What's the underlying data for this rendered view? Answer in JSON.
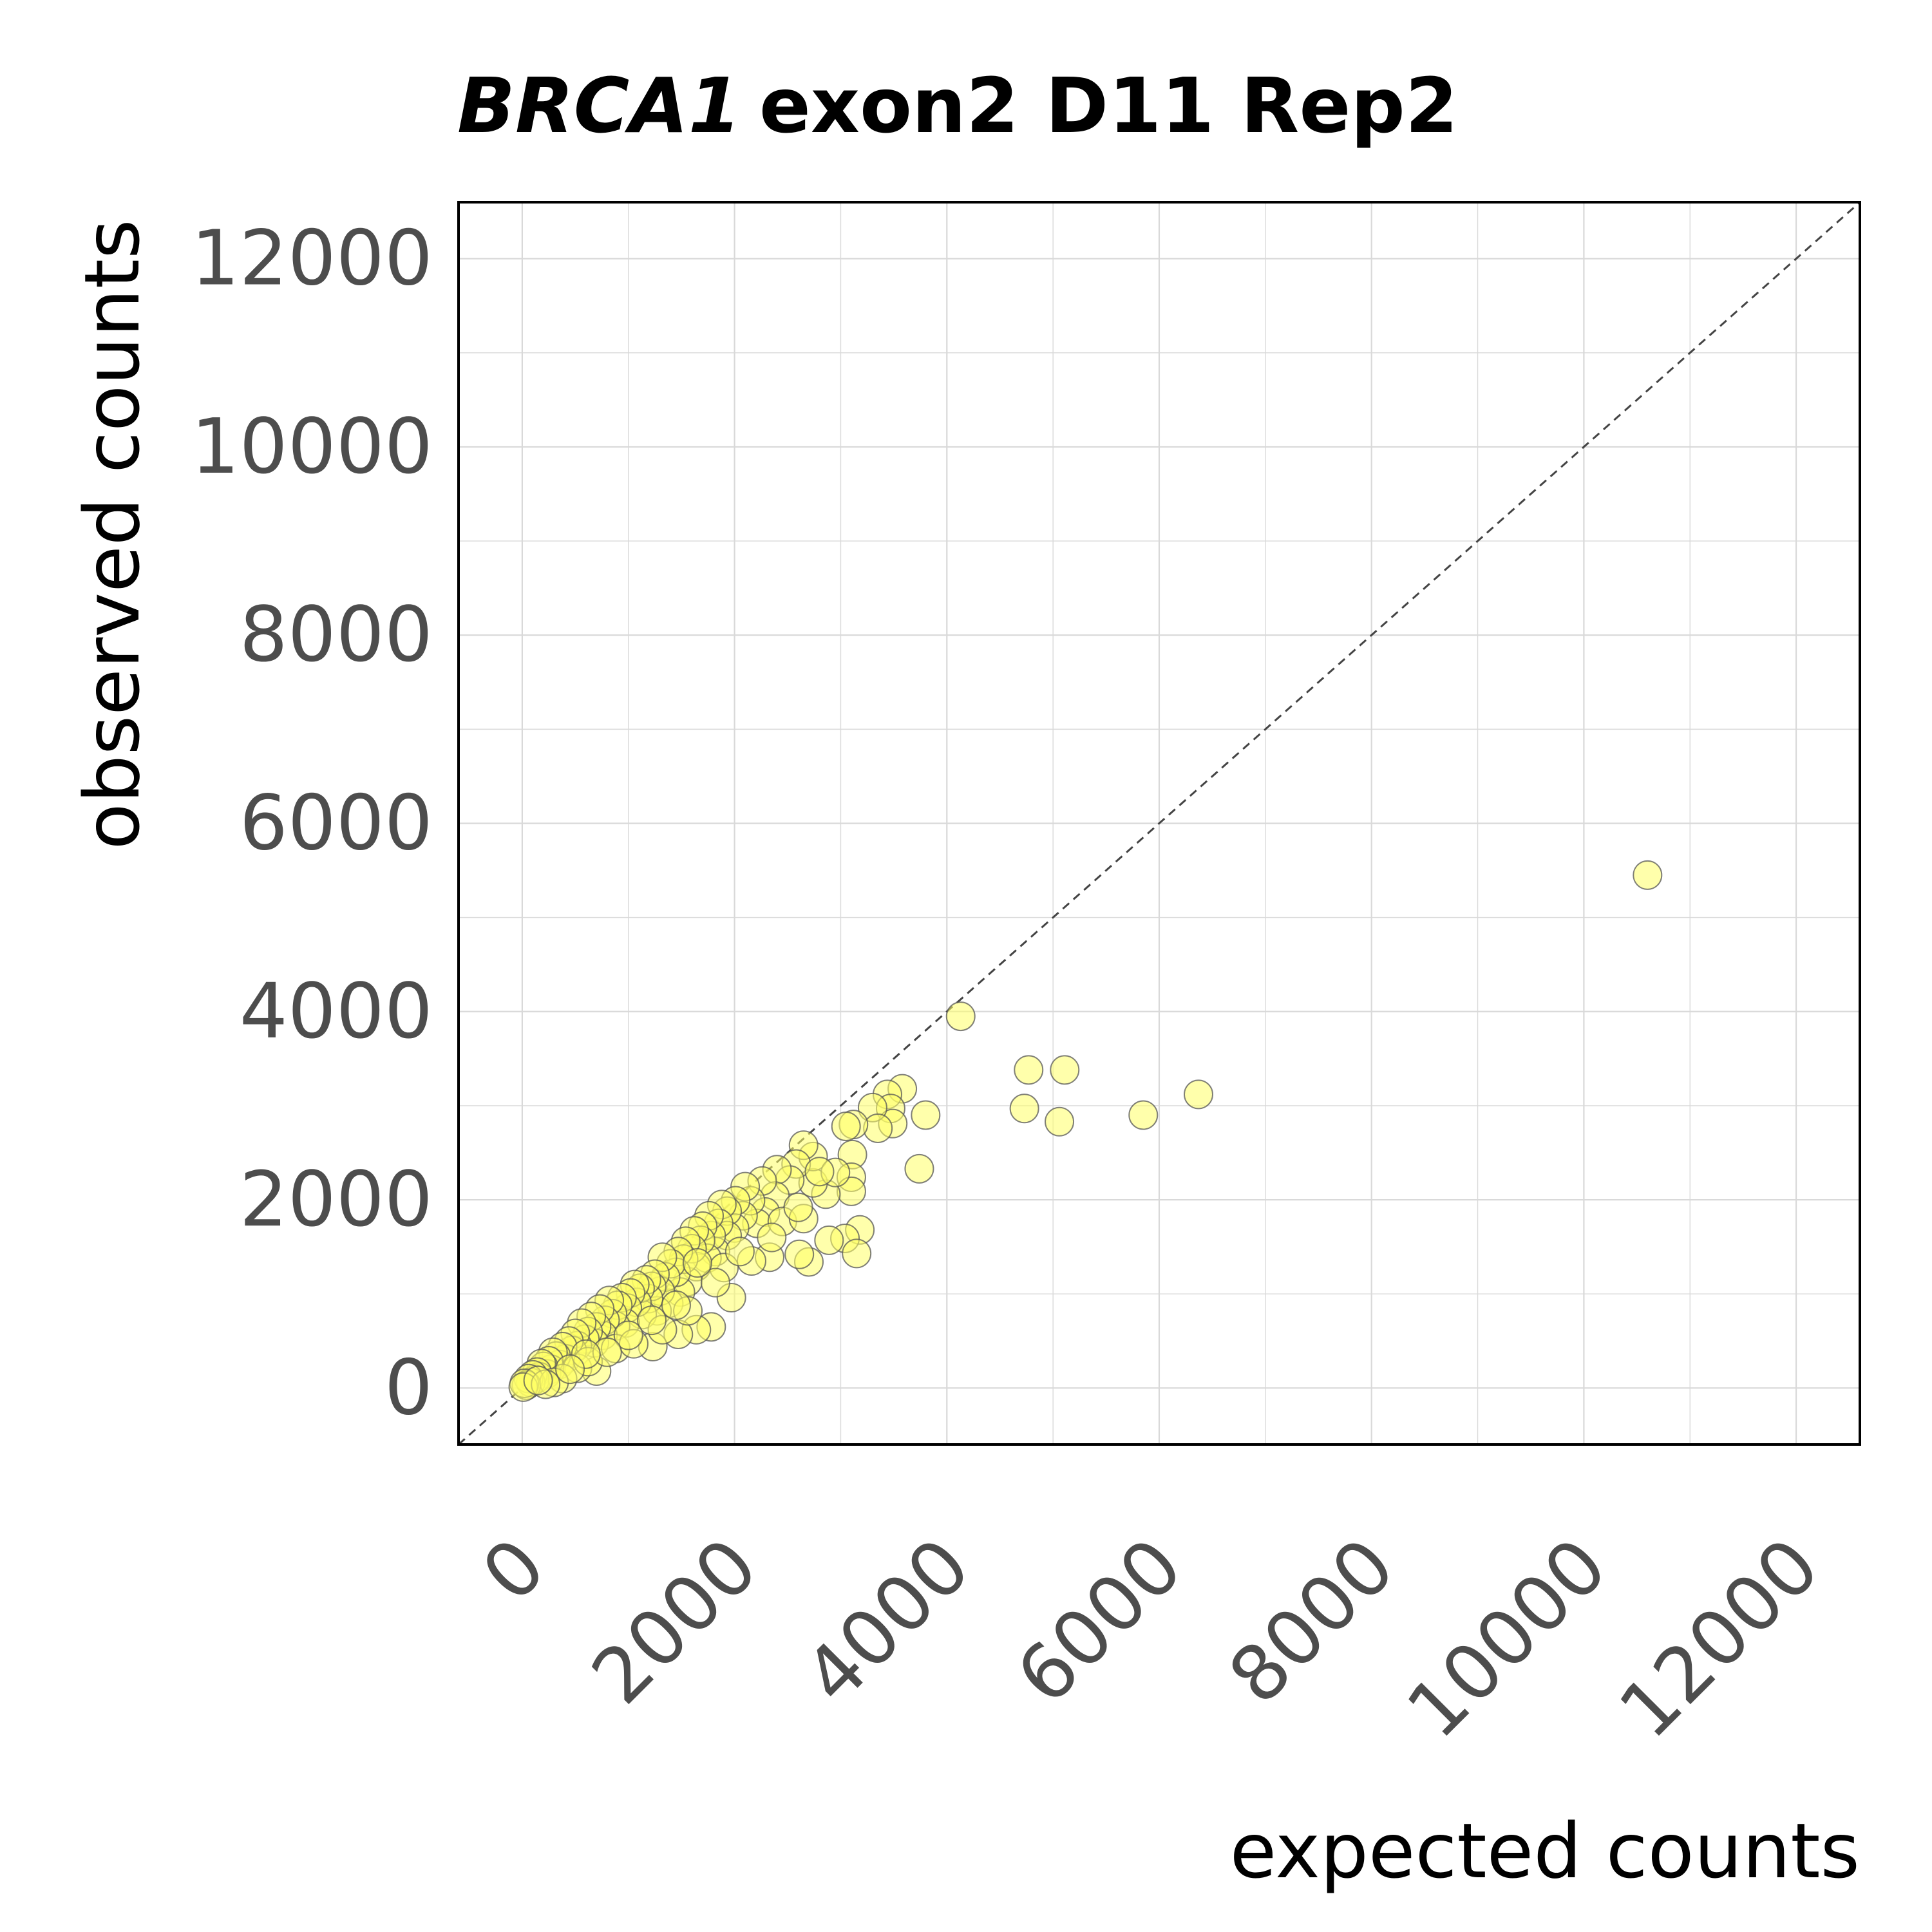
{
  "chart_data": {
    "type": "scatter",
    "title_gene": "BRCA1",
    "title_rest": "exon2 D11 Rep2",
    "xlabel": "expected counts",
    "ylabel": "observed counts",
    "xlim": [
      -600,
      12600
    ],
    "ylim": [
      -600,
      12600
    ],
    "x_ticks": [
      0,
      2000,
      4000,
      6000,
      8000,
      10000,
      12000
    ],
    "y_ticks": [
      0,
      2000,
      4000,
      6000,
      8000,
      10000,
      12000
    ],
    "x_tick_labels": [
      "0",
      "2000",
      "4000",
      "6000",
      "8000",
      "10000",
      "12000"
    ],
    "y_tick_labels": [
      "0",
      "2000",
      "4000",
      "6000",
      "8000",
      "10000",
      "12000"
    ],
    "grid": true,
    "reference_line": "y = x (dashed)",
    "colors": {
      "marker_fill": "#ffff66",
      "marker_edge": "#555555",
      "reference_line": "#444444",
      "grid": "#d9d9d9"
    },
    "points": [
      [
        10600,
        5450
      ],
      [
        4130,
        3950
      ],
      [
        4770,
        3380
      ],
      [
        5110,
        3380
      ],
      [
        4730,
        2970
      ],
      [
        5060,
        2830
      ],
      [
        5850,
        2900
      ],
      [
        6370,
        3120
      ],
      [
        3580,
        3180
      ],
      [
        3440,
        3120
      ],
      [
        3470,
        2970
      ],
      [
        3490,
        2810
      ],
      [
        3300,
        2980
      ],
      [
        3350,
        2760
      ],
      [
        3120,
        2800
      ],
      [
        3800,
        2900
      ],
      [
        3740,
        2330
      ],
      [
        3110,
        2480
      ],
      [
        3100,
        2240
      ],
      [
        3100,
        2090
      ],
      [
        3180,
        1680
      ],
      [
        3040,
        1590
      ],
      [
        3150,
        1430
      ],
      [
        2890,
        1570
      ],
      [
        2700,
        1340
      ],
      [
        2610,
        1420
      ],
      [
        2330,
        1390
      ],
      [
        2160,
        1350
      ],
      [
        1970,
        960
      ],
      [
        1780,
        650
      ],
      [
        1640,
        620
      ],
      [
        1470,
        570
      ],
      [
        1230,
        440
      ],
      [
        2860,
        2060
      ],
      [
        2740,
        2180
      ],
      [
        2740,
        2460
      ],
      [
        2650,
        2580
      ],
      [
        2580,
        2380
      ],
      [
        2520,
        2210
      ],
      [
        2400,
        2320
      ],
      [
        2380,
        2040
      ],
      [
        2260,
        2200
      ],
      [
        2290,
        1870
      ],
      [
        2210,
        1750
      ],
      [
        2150,
        1990
      ],
      [
        2100,
        2140
      ],
      [
        2080,
        1830
      ],
      [
        2010,
        1990
      ],
      [
        2000,
        1700
      ],
      [
        1930,
        1880
      ],
      [
        1930,
        1620
      ],
      [
        1880,
        1950
      ],
      [
        1850,
        1750
      ],
      [
        1820,
        1450
      ],
      [
        1780,
        1620
      ],
      [
        1760,
        1830
      ],
      [
        1740,
        1380
      ],
      [
        1700,
        1720
      ],
      [
        1680,
        1570
      ],
      [
        1640,
        1290
      ],
      [
        1620,
        1670
      ],
      [
        1600,
        1480
      ],
      [
        1560,
        1130
      ],
      [
        1540,
        1560
      ],
      [
        1520,
        1370
      ],
      [
        1490,
        1020
      ],
      [
        1470,
        1450
      ],
      [
        1450,
        1230
      ],
      [
        1400,
        1320
      ],
      [
        1380,
        900
      ],
      [
        1350,
        1180
      ],
      [
        1320,
        1390
      ],
      [
        1300,
        1030
      ],
      [
        1270,
        820
      ],
      [
        1250,
        1210
      ],
      [
        1220,
        1080
      ],
      [
        1190,
        950
      ],
      [
        1170,
        1150
      ],
      [
        1130,
        780
      ],
      [
        1110,
        1060
      ],
      [
        1080,
        910
      ],
      [
        1060,
        1100
      ],
      [
        1020,
        1010
      ],
      [
        990,
        850
      ],
      [
        970,
        690
      ],
      [
        940,
        960
      ],
      [
        900,
        880
      ],
      [
        880,
        660
      ],
      [
        850,
        790
      ],
      [
        820,
        930
      ],
      [
        780,
        720
      ],
      [
        760,
        560
      ],
      [
        730,
        840
      ],
      [
        700,
        650
      ],
      [
        680,
        480
      ],
      [
        650,
        760
      ],
      [
        620,
        600
      ],
      [
        590,
        520
      ],
      [
        560,
        690
      ],
      [
        520,
        450
      ],
      [
        500,
        580
      ],
      [
        470,
        400
      ],
      [
        440,
        500
      ],
      [
        410,
        310
      ],
      [
        380,
        440
      ],
      [
        350,
        250
      ],
      [
        320,
        340
      ],
      [
        290,
        380
      ],
      [
        270,
        200
      ],
      [
        250,
        290
      ],
      [
        230,
        150
      ],
      [
        200,
        230
      ],
      [
        180,
        260
      ],
      [
        160,
        120
      ],
      [
        140,
        170
      ],
      [
        120,
        90
      ],
      [
        100,
        140
      ],
      [
        80,
        60
      ],
      [
        60,
        100
      ],
      [
        40,
        30
      ],
      [
        20,
        50
      ],
      [
        10,
        10
      ],
      [
        700,
        180
      ],
      [
        520,
        210
      ],
      [
        380,
        100
      ],
      [
        300,
        60
      ],
      [
        220,
        40
      ],
      [
        150,
        80
      ],
      [
        620,
        280
      ],
      [
        880,
        420
      ],
      [
        1050,
        470
      ],
      [
        1320,
        620
      ],
      [
        1560,
        820
      ],
      [
        1900,
        1280
      ],
      [
        2450,
        1770
      ],
      [
        2650,
        1800
      ],
      [
        2600,
        1920
      ],
      [
        2350,
        1600
      ],
      [
        2050,
        1450
      ],
      [
        1820,
        1120
      ],
      [
        1650,
        1330
      ],
      [
        1450,
        880
      ],
      [
        1220,
        720
      ],
      [
        1000,
        560
      ],
      [
        800,
        380
      ],
      [
        600,
        360
      ],
      [
        450,
        200
      ],
      [
        2950,
        2290
      ],
      [
        2800,
        2300
      ],
      [
        3050,
        2780
      ]
    ]
  }
}
